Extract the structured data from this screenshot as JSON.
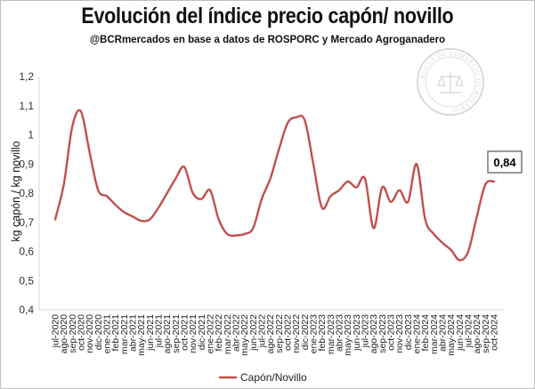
{
  "header": {
    "title": "Evolución del índice precio capón/ novillo",
    "subtitle": "@BCRmercados  en base a datos de ROSPORC y Mercado Agroganadero"
  },
  "watermark": {
    "text": "BOLSA DE COMERCIO DE ROSARIO"
  },
  "callout": {
    "value": "0,84"
  },
  "legend": {
    "label": "Capón/Novillo"
  },
  "chart_data": {
    "type": "line",
    "title": "Evolución del índice precio capón/ novillo",
    "xlabel": "",
    "ylabel": "kg capón / kg novillo",
    "ylim": [
      0.4,
      1.2
    ],
    "yticks": [
      "0,4",
      "0,5",
      "0,6",
      "0,7",
      "0,8",
      "0,9",
      "1",
      "1,1",
      "1,2"
    ],
    "grid": false,
    "legend_position": "bottom",
    "line_color": "#c0504d",
    "categories": [
      "jul-2020",
      "ago-2020",
      "sep-2020",
      "oct-2020",
      "nov-2020",
      "dic-2020",
      "ene-2021",
      "feb-2021",
      "mar-2021",
      "abr-2021",
      "may-2021",
      "jun-2021",
      "jul-2021",
      "ago-2021",
      "sep-2021",
      "oct-2021",
      "nov-2021",
      "dic-2021",
      "ene-2022",
      "feb-2022",
      "mar-2022",
      "abr-2022",
      "may-2022",
      "jun-2022",
      "jul-2022",
      "ago-2022",
      "sep-2022",
      "oct-2022",
      "nov-2022",
      "dic-2022",
      "ene-2023",
      "feb-2023",
      "mar-2023",
      "abr-2023",
      "may-2023",
      "jun-2023",
      "jul-2023",
      "ago-2023",
      "sep-2023",
      "oct-2023",
      "nov-2023",
      "dic-2023",
      "ene-2024",
      "feb-2024",
      "mar-2024",
      "abr-2024",
      "may-2024",
      "jun-2024",
      "jul-2024",
      "ago-2024",
      "sep-2024",
      "oct-2024"
    ],
    "series": [
      {
        "name": "Capón/Novillo",
        "values": [
          0.71,
          0.83,
          1.03,
          1.08,
          0.94,
          0.81,
          0.79,
          0.76,
          0.735,
          0.72,
          0.705,
          0.71,
          0.75,
          0.8,
          0.85,
          0.89,
          0.8,
          0.78,
          0.81,
          0.71,
          0.66,
          0.655,
          0.66,
          0.68,
          0.78,
          0.85,
          0.95,
          1.04,
          1.06,
          1.05,
          0.9,
          0.75,
          0.79,
          0.81,
          0.84,
          0.82,
          0.85,
          0.68,
          0.82,
          0.77,
          0.81,
          0.77,
          0.9,
          0.71,
          0.66,
          0.63,
          0.605,
          0.57,
          0.6,
          0.72,
          0.83,
          0.84
        ]
      }
    ]
  }
}
